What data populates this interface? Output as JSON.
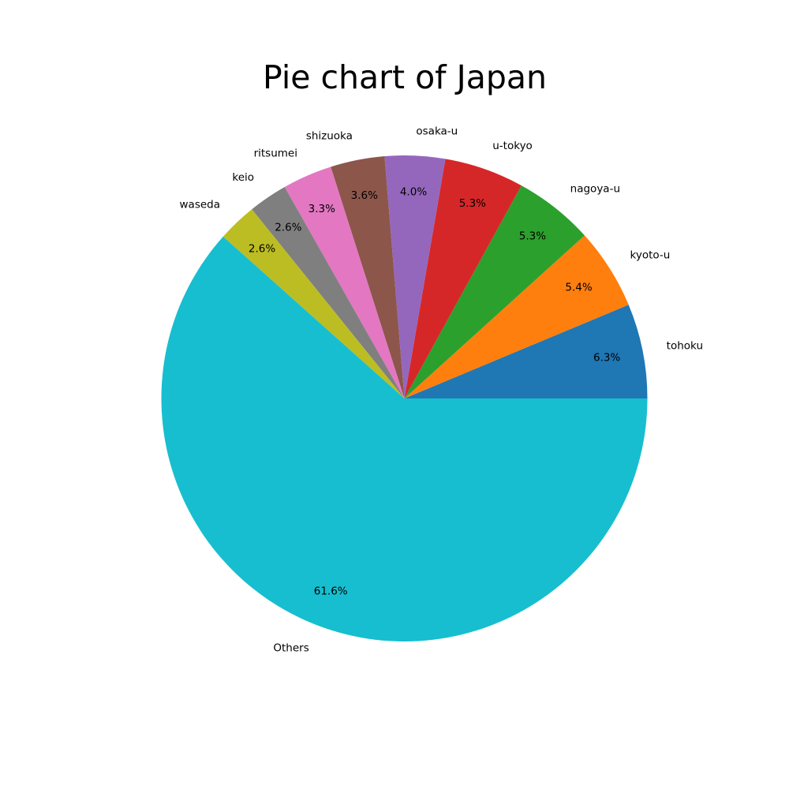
{
  "chart_data": {
    "type": "pie",
    "title": "Pie chart of Japan",
    "categories": [
      "tohoku",
      "kyoto-u",
      "nagoya-u",
      "u-tokyo",
      "osaka-u",
      "shizuoka",
      "ritsumei",
      "keio",
      "waseda",
      "Others"
    ],
    "values": [
      6.3,
      5.4,
      5.3,
      5.3,
      4.0,
      3.6,
      3.3,
      2.6,
      2.6,
      61.6
    ],
    "percent_labels": [
      "6.3%",
      "5.4%",
      "5.3%",
      "5.3%",
      "4.0%",
      "3.6%",
      "3.3%",
      "2.6%",
      "2.6%",
      "61.6%"
    ],
    "colors": [
      "#1f77b4",
      "#ff7f0e",
      "#2ca02c",
      "#d62728",
      "#9467bd",
      "#8c564b",
      "#e377c2",
      "#7f7f7f",
      "#bcbd22",
      "#17becf"
    ],
    "start_angle_deg": 0,
    "direction": "counterclockwise",
    "legend": "none"
  }
}
